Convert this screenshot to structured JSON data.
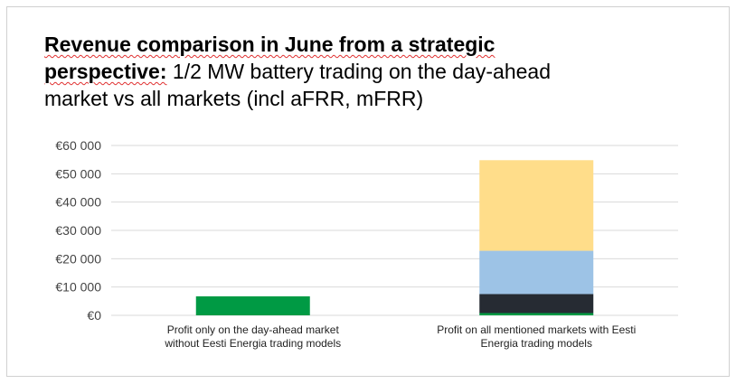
{
  "title": {
    "bold_line1": "Revenue comparison in June from a strategic",
    "bold_line2": "perspective:",
    "rest_line2": "1/2 MW battery trading on the day-ahead",
    "line3": "market vs all markets (incl aFRR, mFRR)"
  },
  "colors": {
    "day_ahead_only": "#009a44",
    "segment_1": "#009a44",
    "segment_2": "#262b33",
    "segment_3": "#9dc3e6",
    "segment_4": "#ffdd8a",
    "gridline": "#d9d9d9"
  },
  "chart_data": {
    "type": "bar",
    "stacked": true,
    "categories": [
      "Profit only on the day-ahead market without Eesti Energia trading models",
      "Profit on all mentioned markets with Eesti Energia trading models"
    ],
    "category_lines": [
      [
        "Profit only on the day-ahead market",
        "without Eesti Energia trading models"
      ],
      [
        "Profit on all mentioned markets with Eesti",
        "Energia trading models"
      ]
    ],
    "series": [
      {
        "values": [
          6700,
          800
        ]
      },
      {
        "values": [
          0,
          6700
        ]
      },
      {
        "values": [
          0,
          15300
        ]
      },
      {
        "values": [
          0,
          32000
        ]
      }
    ],
    "ylim": [
      0,
      60000
    ],
    "yticks": [
      0,
      10000,
      20000,
      30000,
      40000,
      50000,
      60000
    ],
    "ytick_labels": [
      "€0",
      "€10 000",
      "€20 000",
      "€30 000",
      "€40 000",
      "€50 000",
      "€60 000"
    ],
    "grid": true,
    "legend": "none"
  }
}
